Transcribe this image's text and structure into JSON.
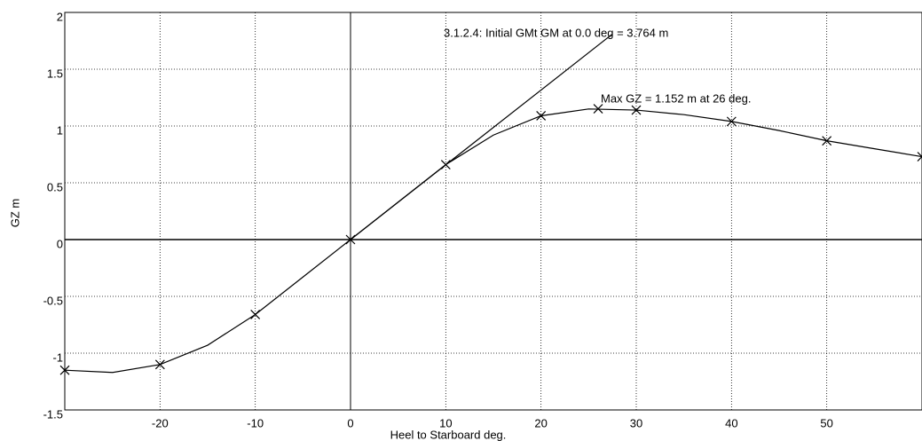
{
  "chart_data": {
    "type": "line",
    "xlabel": "Heel to Starboard   deg.",
    "ylabel": "GZ  m",
    "xlim": [
      -30,
      60
    ],
    "ylim": [
      -1.5,
      2
    ],
    "xticks": [
      -20,
      -10,
      0,
      10,
      20,
      30,
      40,
      50
    ],
    "yticks": [
      2,
      1.5,
      1,
      0.5,
      0,
      -0.5,
      -1,
      -1.5
    ],
    "grid": true,
    "curve": {
      "color": "#000000",
      "x": [
        -30,
        -25,
        -20,
        -15,
        -10,
        -5,
        0,
        5,
        10,
        15,
        20,
        25,
        30,
        35,
        40,
        45,
        50,
        55,
        60
      ],
      "values": [
        -1.15,
        -1.17,
        -1.1,
        -0.93,
        -0.66,
        -0.33,
        0,
        0.33,
        0.66,
        0.92,
        1.09,
        1.15,
        1.14,
        1.1,
        1.04,
        0.96,
        0.87,
        0.8,
        0.73
      ]
    },
    "markers": {
      "color": "#000000",
      "x": [
        -30,
        -20,
        -10,
        0,
        10,
        20,
        26,
        30,
        40,
        50,
        60
      ],
      "values": [
        -1.15,
        -1.1,
        -0.66,
        0,
        0.66,
        1.09,
        1.152,
        1.14,
        1.04,
        0.87,
        0.73
      ]
    },
    "gm_line": {
      "color": "#000000",
      "x": [
        0,
        27.5
      ],
      "values": [
        0,
        1.81
      ]
    },
    "annotations": [
      "3.1.2.4: Initial GMt GM at 0.0 deg = 3.764 m",
      "Max GZ = 1.152 m at 26 deg."
    ]
  }
}
